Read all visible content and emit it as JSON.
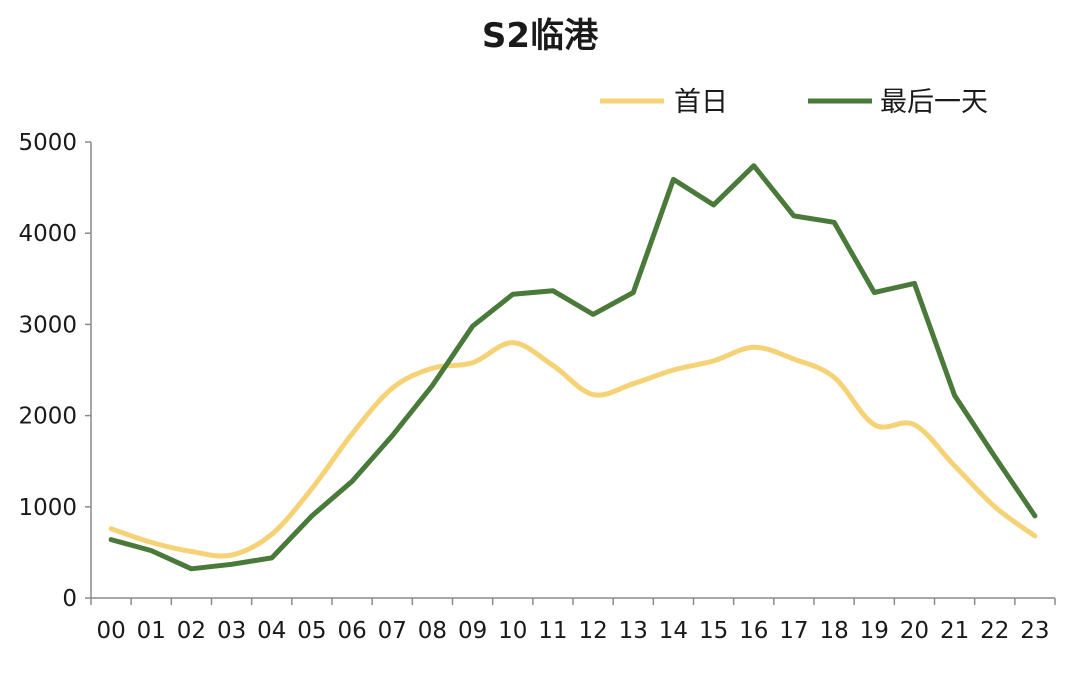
{
  "chart_data": {
    "type": "line",
    "title": "S2临港",
    "xlabel": "",
    "ylabel": "",
    "categories": [
      "00",
      "01",
      "02",
      "03",
      "04",
      "05",
      "06",
      "07",
      "08",
      "09",
      "10",
      "11",
      "12",
      "13",
      "14",
      "15",
      "16",
      "17",
      "18",
      "19",
      "20",
      "21",
      "22",
      "23"
    ],
    "ylim": [
      0,
      5000
    ],
    "yticks": [
      "0",
      "1000",
      "2000",
      "3000",
      "4000",
      "5000"
    ],
    "grid": false,
    "legend_position": "top-right",
    "series": [
      {
        "name": "首日",
        "color": "#f5d276",
        "values": [
          760,
          610,
          510,
          470,
          700,
          1200,
          1800,
          2300,
          2520,
          2580,
          2800,
          2550,
          2230,
          2350,
          2500,
          2600,
          2750,
          2620,
          2420,
          1900,
          1900,
          1450,
          1000,
          680
        ]
      },
      {
        "name": "最后一天",
        "color": "#4a7a3a",
        "values": [
          640,
          520,
          320,
          370,
          440,
          900,
          1280,
          1780,
          2330,
          2980,
          3330,
          3370,
          3110,
          3350,
          4590,
          4310,
          4740,
          4190,
          4120,
          3350,
          3450,
          2220,
          1550,
          900
        ]
      }
    ]
  }
}
